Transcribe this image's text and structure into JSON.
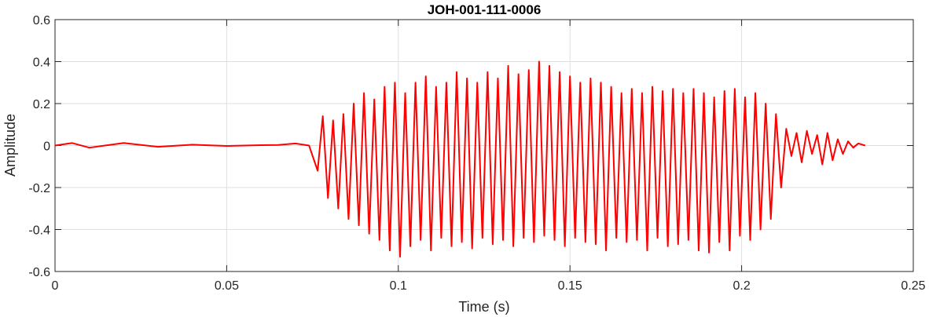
{
  "chart_data": {
    "type": "line",
    "title": "JOH-001-111-0006",
    "xlabel": "Time (s)",
    "ylabel": "Amplitude",
    "xlim": [
      0,
      0.25
    ],
    "ylim": [
      -0.6,
      0.6
    ],
    "x_ticks": [
      0,
      0.05,
      0.1,
      0.15,
      0.2,
      0.25
    ],
    "x_tick_labels": [
      "0",
      "0.05",
      "0.1",
      "0.15",
      "0.2",
      "0.25"
    ],
    "y_ticks": [
      -0.6,
      -0.4,
      -0.2,
      0,
      0.2,
      0.4,
      0.6
    ],
    "y_tick_labels": [
      "-0.6",
      "-0.4",
      "-0.2",
      "0",
      "0.2",
      "0.4",
      "0.6"
    ],
    "grid": true,
    "series": [
      {
        "color": "#ff0000",
        "x": [
          0,
          0.005,
          0.01,
          0.02,
          0.03,
          0.04,
          0.05,
          0.06,
          0.065,
          0.07,
          0.074,
          0.0765,
          0.078,
          0.0795,
          0.081,
          0.0825,
          0.084,
          0.0855,
          0.087,
          0.0885,
          0.09,
          0.0915,
          0.093,
          0.0945,
          0.096,
          0.0975,
          0.099,
          0.1005,
          0.102,
          0.1035,
          0.105,
          0.1065,
          0.108,
          0.1095,
          0.111,
          0.1125,
          0.114,
          0.1155,
          0.117,
          0.1185,
          0.12,
          0.1215,
          0.123,
          0.1245,
          0.126,
          0.1275,
          0.129,
          0.1305,
          0.132,
          0.1335,
          0.135,
          0.1365,
          0.138,
          0.1395,
          0.141,
          0.1425,
          0.144,
          0.1455,
          0.147,
          0.1485,
          0.15,
          0.1515,
          0.153,
          0.1545,
          0.156,
          0.1575,
          0.159,
          0.1605,
          0.162,
          0.1635,
          0.165,
          0.1665,
          0.168,
          0.1695,
          0.171,
          0.1725,
          0.174,
          0.1755,
          0.177,
          0.1785,
          0.18,
          0.1815,
          0.183,
          0.1845,
          0.186,
          0.1875,
          0.189,
          0.1905,
          0.192,
          0.1935,
          0.195,
          0.1965,
          0.198,
          0.1995,
          0.201,
          0.2025,
          0.204,
          0.2055,
          0.207,
          0.2085,
          0.21,
          0.2115,
          0.213,
          0.2145,
          0.216,
          0.2175,
          0.219,
          0.2205,
          0.222,
          0.2235,
          0.225,
          0.2265,
          0.228,
          0.2295,
          0.231,
          0.2325,
          0.234,
          0.236
        ],
        "values": [
          0,
          0.012,
          -0.01,
          0.012,
          -0.006,
          0.004,
          -0.002,
          0.002,
          0.003,
          0.01,
          0.0,
          -0.12,
          0.14,
          -0.25,
          0.12,
          -0.3,
          0.15,
          -0.35,
          0.2,
          -0.38,
          0.25,
          -0.42,
          0.22,
          -0.45,
          0.28,
          -0.5,
          0.3,
          -0.53,
          0.25,
          -0.48,
          0.3,
          -0.45,
          0.33,
          -0.5,
          0.28,
          -0.44,
          0.3,
          -0.48,
          0.35,
          -0.46,
          0.32,
          -0.49,
          0.3,
          -0.44,
          0.35,
          -0.47,
          0.32,
          -0.45,
          0.38,
          -0.48,
          0.34,
          -0.44,
          0.36,
          -0.46,
          0.4,
          -0.43,
          0.38,
          -0.45,
          0.35,
          -0.48,
          0.33,
          -0.44,
          0.3,
          -0.46,
          0.32,
          -0.47,
          0.3,
          -0.5,
          0.28,
          -0.44,
          0.25,
          -0.46,
          0.27,
          -0.45,
          0.25,
          -0.5,
          0.28,
          -0.44,
          0.26,
          -0.48,
          0.27,
          -0.47,
          0.25,
          -0.45,
          0.27,
          -0.5,
          0.25,
          -0.51,
          0.23,
          -0.46,
          0.26,
          -0.5,
          0.27,
          -0.43,
          0.23,
          -0.45,
          0.25,
          -0.4,
          0.2,
          -0.35,
          0.15,
          -0.2,
          0.08,
          -0.05,
          0.06,
          -0.08,
          0.07,
          -0.04,
          0.05,
          -0.09,
          0.06,
          -0.07,
          0.03,
          -0.04,
          0.02,
          -0.01,
          0.01,
          0.0
        ]
      }
    ]
  }
}
